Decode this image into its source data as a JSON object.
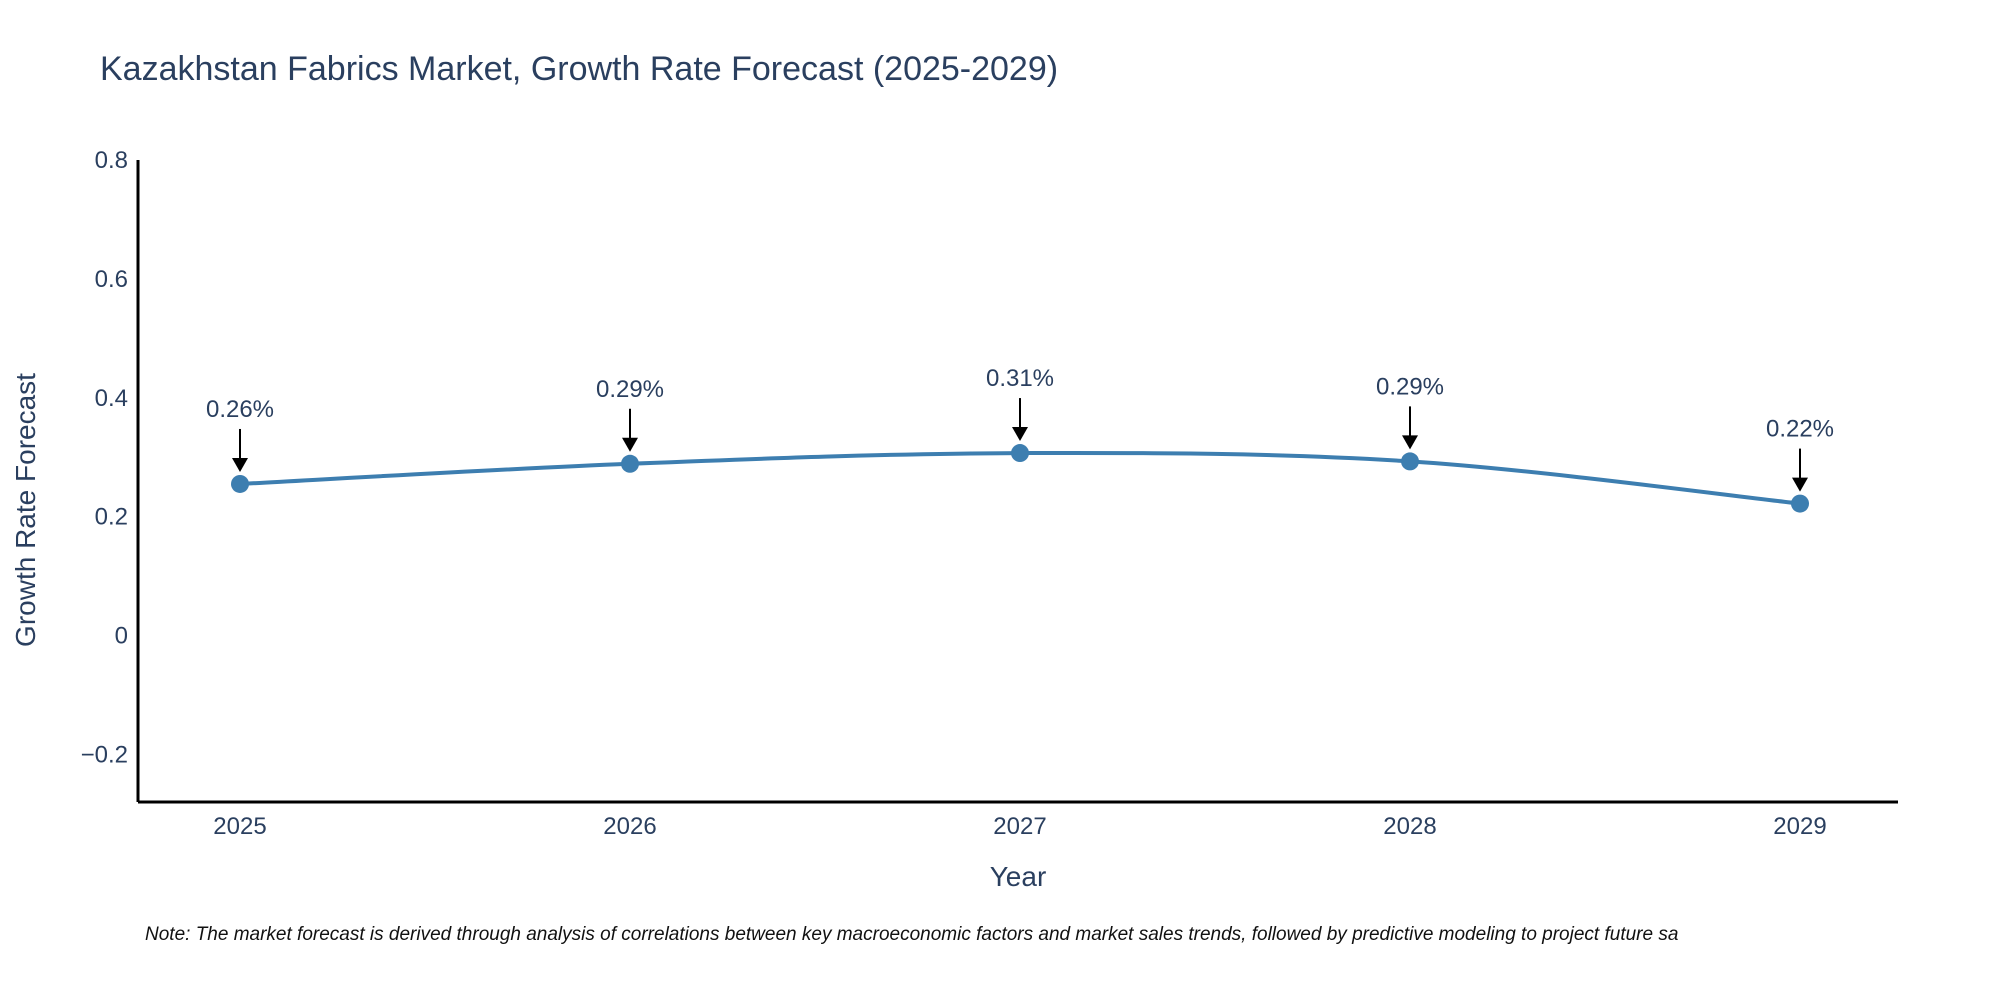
{
  "chart_data": {
    "type": "line",
    "title": "Kazakhstan Fabrics Market, Growth Rate Forecast (2025-2029)",
    "xlabel": "Year",
    "ylabel": "Growth Rate Forecast",
    "categories": [
      "2025",
      "2026",
      "2027",
      "2028",
      "2029"
    ],
    "values": [
      0.255,
      0.289,
      0.307,
      0.293,
      0.222
    ],
    "data_labels": [
      "0.26%",
      "0.29%",
      "0.31%",
      "0.29%",
      "0.22%"
    ],
    "ylim": [
      -0.28,
      0.8
    ],
    "yticks": [
      -0.2,
      0,
      0.2,
      0.4,
      0.6,
      0.8
    ],
    "ytick_labels": [
      "−0.2",
      "0",
      "0.2",
      "0.4",
      "0.6",
      "0.8"
    ],
    "grid": false,
    "line_shape": "spline",
    "series_color": "#3d7eb0",
    "annotation_arrow_color": "#000000",
    "note": "Note: The market forecast is derived through analysis of correlations between key macroeconomic factors and market sales trends, followed by predictive modeling to project future sa"
  }
}
